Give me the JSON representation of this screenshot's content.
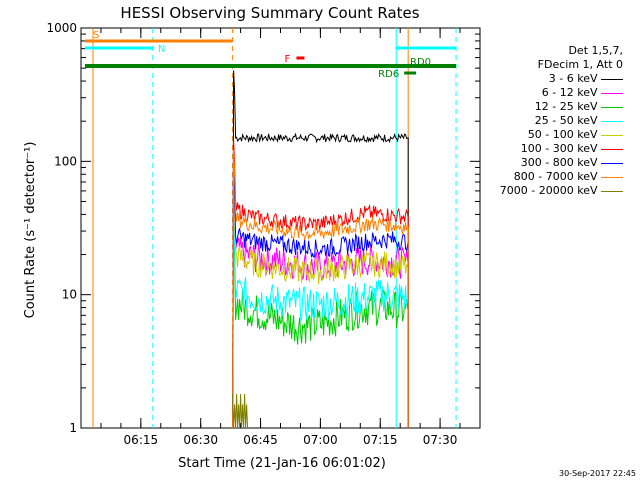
{
  "chart_data": {
    "type": "line",
    "title": "HESSI Observing Summary Count Rates",
    "xlabel": "Start Time (21-Jan-16 06:01:02)",
    "ylabel": "Count Rate (s⁻¹ detector⁻¹)",
    "y_scale": "log",
    "ylim": [
      1,
      1000
    ],
    "xlim_minutes": [
      6.0,
      7.6667
    ],
    "x_ticks": [
      "06:15",
      "06:30",
      "06:45",
      "07:00",
      "07:15",
      "07:30"
    ],
    "y_ticks": [
      "1",
      "10",
      "100",
      "1000"
    ],
    "legend_header": [
      "Det 1,5,7,",
      "FDecim 1, Att 0"
    ],
    "series": [
      {
        "name": "3 - 6 keV",
        "color": "#000000",
        "start": "06:38",
        "end": "07:22",
        "level": [
          150,
          150,
          150,
          150,
          150,
          150,
          150,
          150,
          150
        ]
      },
      {
        "name": "6 - 12 keV",
        "color": "#ff00ff",
        "start": "06:38",
        "end": "07:22",
        "level": [
          22,
          19,
          18,
          17,
          16,
          17,
          18,
          18,
          17
        ]
      },
      {
        "name": "12 - 25 keV",
        "color": "#00cc00",
        "start": "06:38",
        "end": "07:22",
        "level": [
          9,
          7.5,
          6.5,
          5.8,
          6,
          7,
          8,
          8,
          7.5
        ]
      },
      {
        "name": "25 - 50 keV",
        "color": "#00ffff",
        "start": "06:38",
        "end": "07:22",
        "level": [
          11,
          9.5,
          9,
          8.5,
          8.5,
          9,
          9.5,
          10,
          9.5
        ]
      },
      {
        "name": "50 - 100 keV",
        "color": "#cccc00",
        "start": "06:38",
        "end": "07:22",
        "level": [
          20,
          17,
          16,
          15,
          15,
          16,
          17,
          17,
          16
        ]
      },
      {
        "name": "100 - 300 keV",
        "color": "#ff0000",
        "start": "06:38",
        "end": "07:22",
        "level": [
          45,
          38,
          36,
          34,
          34,
          37,
          41,
          40,
          38
        ]
      },
      {
        "name": "300 - 800 keV",
        "color": "#0000ff",
        "start": "06:38",
        "end": "07:22",
        "level": [
          28,
          25,
          24,
          23,
          22,
          23,
          25,
          26,
          25
        ]
      },
      {
        "name": "800 - 7000 keV",
        "color": "#ff8000",
        "start": "06:38",
        "end": "07:22",
        "level": [
          38,
          33,
          31,
          29,
          29,
          31,
          34,
          34,
          32
        ]
      },
      {
        "name": "7000 - 20000 keV",
        "color": "#808000",
        "start": "06:38",
        "end": "06:40",
        "level": [
          1.8,
          1.5
        ]
      }
    ],
    "flags": [
      {
        "label": "S",
        "color": "#ff8000",
        "start": "06:01",
        "end": "06:38"
      },
      {
        "label": "N",
        "color": "#00ffff",
        "start": "06:01",
        "end": "06:18"
      },
      {
        "label": "N",
        "color": "#00ffff",
        "start": "07:19",
        "end": "07:34"
      },
      {
        "label": "F",
        "color": "#ff0000",
        "start": "06:54",
        "end": "06:56"
      },
      {
        "label": "RD0",
        "color": "#008000",
        "start": "06:01",
        "end": "07:34"
      },
      {
        "label": "RD6",
        "color": "#008000",
        "start": "07:21",
        "end": "07:24"
      }
    ],
    "annotation": "30-Sep-2017 22:45"
  }
}
